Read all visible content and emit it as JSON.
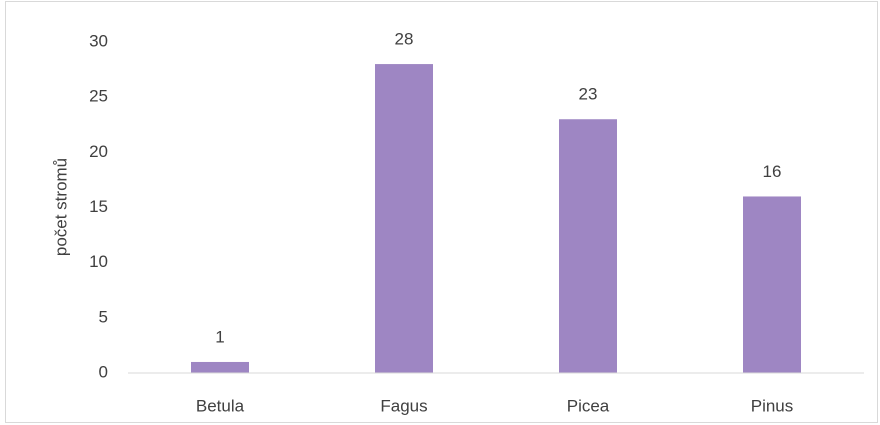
{
  "chart_data": {
    "type": "bar",
    "y_label": "počet stromů",
    "categories": [
      "Betula",
      "Fagus",
      "Picea",
      "Pinus"
    ],
    "values": [
      1,
      28,
      23,
      16
    ],
    "color": "#9e86c3",
    "ylim": [
      0,
      30
    ],
    "yticks": [
      0,
      5,
      10,
      15,
      20,
      25,
      30
    ],
    "grid": false,
    "data_labels": true
  }
}
